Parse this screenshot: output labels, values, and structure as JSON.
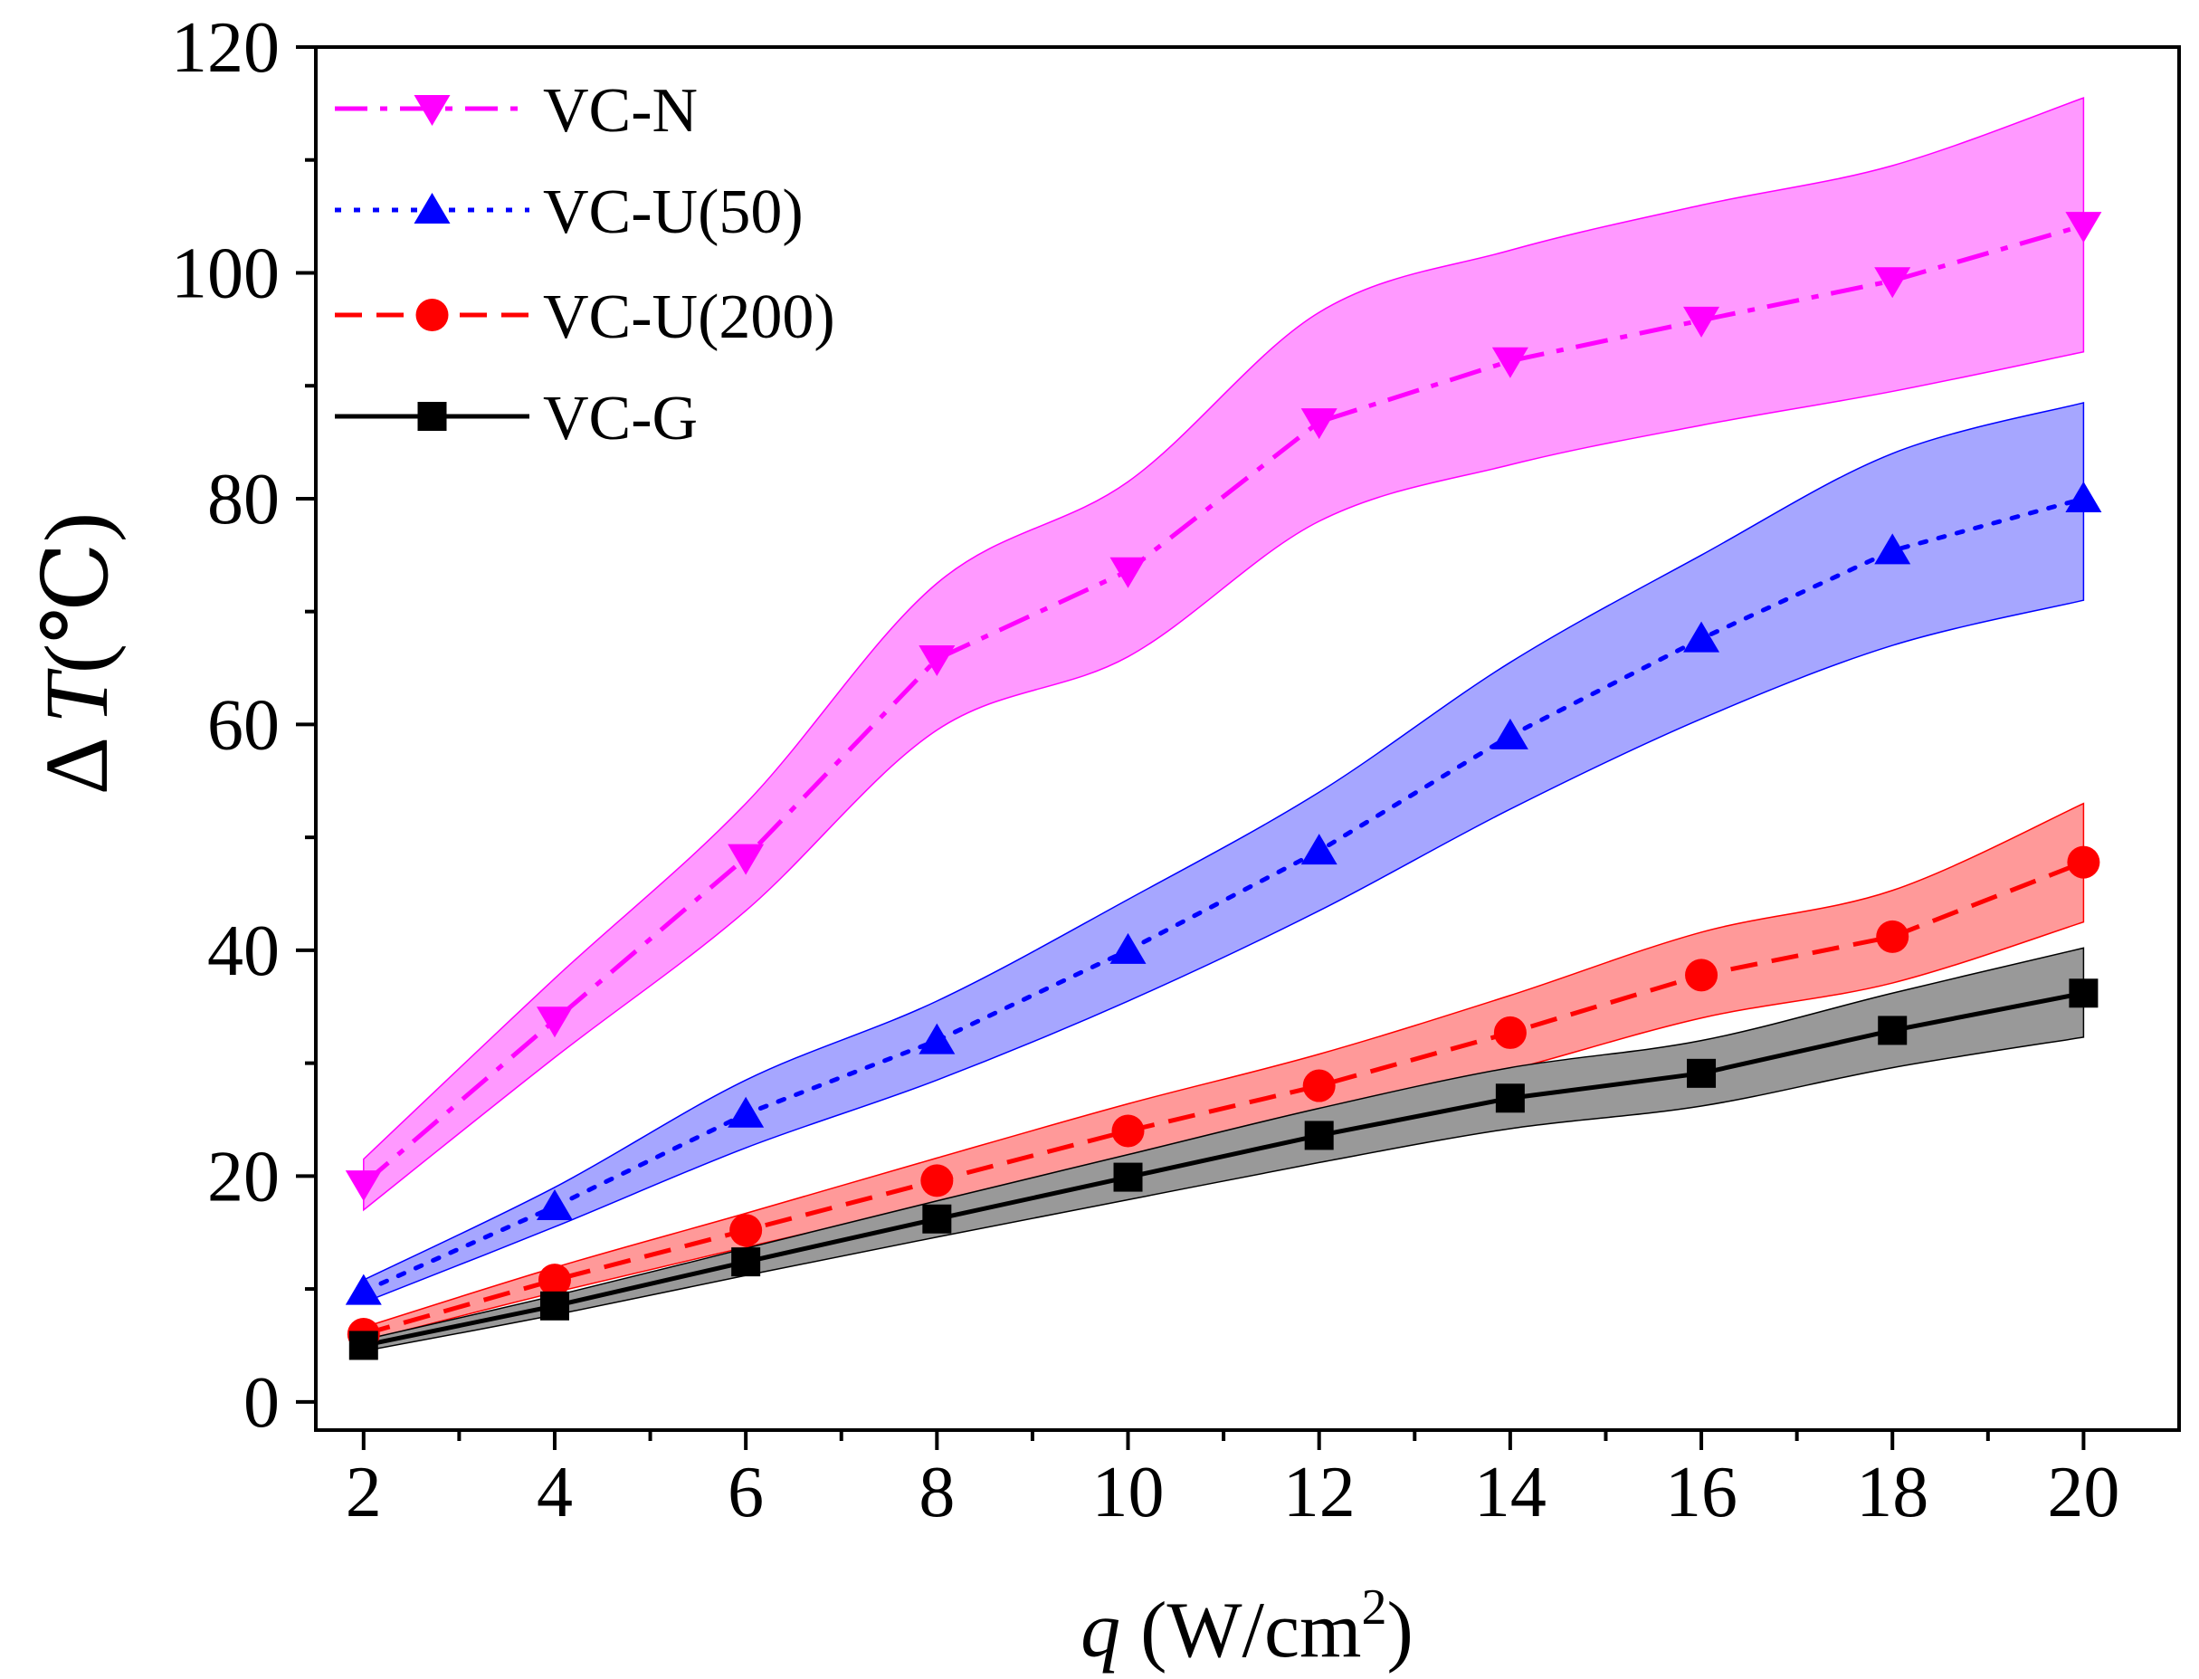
{
  "chart_data": {
    "type": "line",
    "xlabel": "q (W/cm2)",
    "xlabel_parts": {
      "var": "q",
      "unit": " (W/cm",
      "sup": "2",
      "close": ")"
    },
    "ylabel": "ΔT(℃)",
    "ylabel_parts": {
      "delta": "Δ",
      "var": "T",
      "unit": "(℃)"
    },
    "xlim": [
      1.5,
      21
    ],
    "ylim": [
      -2.5,
      120
    ],
    "xticks": [
      2,
      4,
      6,
      8,
      10,
      12,
      14,
      16,
      18,
      20
    ],
    "yticks": [
      0,
      20,
      40,
      60,
      80,
      100,
      120
    ],
    "x": [
      2,
      4,
      6,
      8,
      10,
      12,
      14,
      16,
      18,
      20
    ],
    "legend_position": "top-left",
    "series": [
      {
        "name": "VC-N",
        "color": "#ff00ff",
        "band_color": "#ff99ff",
        "marker": "triangle-down",
        "line_style": "dash-dot",
        "values": [
          19.3,
          33.8,
          48.2,
          65.8,
          73.6,
          86.8,
          92.2,
          95.8,
          99.3,
          104.2
        ],
        "band_low": [
          17.0,
          30.5,
          43.5,
          59.5,
          66.0,
          78.0,
          83.0,
          86.5,
          89.5,
          93.0
        ],
        "band_high": [
          21.5,
          37.5,
          53.0,
          72.5,
          81.5,
          96.5,
          102.0,
          106.0,
          109.5,
          115.5
        ]
      },
      {
        "name": "VC-U(50)",
        "color": "#0000ff",
        "band_color": "#a6a6ff",
        "marker": "triangle-up",
        "line_style": "dotted",
        "values": [
          9.8,
          17.3,
          25.5,
          32.0,
          40.0,
          48.8,
          59.0,
          67.6,
          75.4,
          80.0
        ],
        "band_low": [
          8.8,
          15.5,
          22.5,
          28.5,
          35.5,
          43.5,
          52.5,
          60.5,
          67.0,
          71.0
        ],
        "band_high": [
          10.8,
          19.0,
          28.5,
          35.5,
          44.5,
          54.0,
          65.5,
          75.0,
          84.0,
          88.5
        ]
      },
      {
        "name": "VC-U(200)",
        "color": "#ff0000",
        "band_color": "#ff9999",
        "marker": "circle",
        "line_style": "dashed",
        "values": [
          6.0,
          10.8,
          15.2,
          19.6,
          24.0,
          28.0,
          32.7,
          37.8,
          41.2,
          47.8
        ],
        "band_low": [
          5.4,
          9.7,
          13.7,
          17.6,
          21.6,
          25.2,
          29.4,
          34.0,
          37.1,
          42.5
        ],
        "band_high": [
          6.6,
          11.9,
          16.7,
          21.6,
          26.4,
          30.8,
          36.0,
          41.6,
          45.3,
          53.0
        ]
      },
      {
        "name": "VC-G",
        "color": "#000000",
        "band_color": "#999999",
        "marker": "square",
        "line_style": "solid",
        "values": [
          5.0,
          8.5,
          12.4,
          16.2,
          19.9,
          23.6,
          26.9,
          29.1,
          32.9,
          36.2
        ],
        "band_low": [
          4.5,
          7.7,
          11.2,
          14.6,
          17.9,
          21.2,
          24.2,
          26.2,
          29.6,
          32.3
        ],
        "band_high": [
          5.5,
          9.4,
          13.6,
          17.8,
          21.9,
          26.0,
          29.6,
          32.0,
          36.2,
          40.2
        ]
      }
    ]
  }
}
